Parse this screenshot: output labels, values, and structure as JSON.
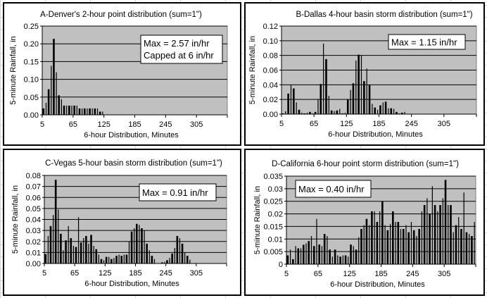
{
  "chart_data": [
    {
      "id": "A",
      "type": "bar",
      "title": "A-Denver's 2-hour point distribution (sum=1\")",
      "xlabel": "6-hour Distribution, Minutes",
      "ylabel": "5-minute Rainfall, in",
      "xlim": [
        5,
        365
      ],
      "ylim": [
        0,
        0.25
      ],
      "y_ticks": [
        "0.00",
        "0.05",
        "0.10",
        "0.15",
        "0.20",
        "0.25"
      ],
      "y_tick_values": [
        0,
        0.05,
        0.1,
        0.15,
        0.2,
        0.25
      ],
      "x_ticks": [
        "5",
        "65",
        "125",
        "185",
        "245",
        "305"
      ],
      "x_tick_values": [
        5,
        65,
        125,
        185,
        245,
        305
      ],
      "grid": true,
      "annotation": [
        "Max = 2.57 in/hr",
        "Capped at 6 in/hr"
      ],
      "annotation_placement": "top-right",
      "interval_minutes": 5,
      "values": [
        0.018,
        0.034,
        0.072,
        0.138,
        0.214,
        0.12,
        0.055,
        0.044,
        0.026,
        0.026,
        0.026,
        0.026,
        0.026,
        0.026,
        0.018,
        0.018,
        0.018,
        0.018,
        0.018,
        0.018,
        0.018,
        0.018,
        0.009,
        0.009
      ]
    },
    {
      "id": "B",
      "type": "bar",
      "title": "B-Dallas 4-hour basin storm distribution (sum=1\")",
      "xlabel": "6-hour Distribution, Minutes",
      "ylabel": "5-minute Rainfall, in",
      "xlim": [
        5,
        365
      ],
      "ylim": [
        0,
        0.12
      ],
      "y_ticks": [
        "0.00",
        "0.02",
        "0.04",
        "0.06",
        "0.08",
        "0.10",
        "0.12"
      ],
      "y_tick_values": [
        0,
        0.02,
        0.04,
        0.06,
        0.08,
        0.1,
        0.12
      ],
      "x_ticks": [
        "5",
        "65",
        "125",
        "185",
        "245",
        "305"
      ],
      "x_tick_values": [
        5,
        65,
        125,
        185,
        245,
        305
      ],
      "grid": true,
      "annotation": [
        "Max = 1.15 in/hr"
      ],
      "annotation_placement": "top-right",
      "interval_minutes": 5,
      "values": [
        0.001,
        0.004,
        0.028,
        0.04,
        0.035,
        0.016,
        0.006,
        0.002,
        0.001,
        0.002,
        0.003,
        0.001,
        0.003,
        0.02,
        0.041,
        0.096,
        0.075,
        0.025,
        0.005,
        0.004,
        0.005,
        0.007,
        0.001,
        0.002,
        0.02,
        0.033,
        0.042,
        0.073,
        0.081,
        0.08,
        0.045,
        0.062,
        0.04,
        0.014,
        0.009,
        0.006,
        0.012,
        0.016,
        0.017,
        0.008,
        0.008,
        0.007,
        0.003,
        0.001,
        0.002,
        0.003
      ]
    },
    {
      "id": "C",
      "type": "bar",
      "title": "C-Vegas 5-hour basin storm distribution (sum=1\")",
      "xlabel": "6-hour Distribution, Minutes",
      "ylabel": "5-minute Rainfall, in",
      "xlim": [
        5,
        365
      ],
      "ylim": [
        0,
        0.08
      ],
      "y_ticks": [
        "0.00",
        "0.01",
        "0.02",
        "0.03",
        "0.04",
        "0.05",
        "0.06",
        "0.07",
        "0.08"
      ],
      "y_tick_values": [
        0,
        0.01,
        0.02,
        0.03,
        0.04,
        0.05,
        0.06,
        0.07,
        0.08
      ],
      "x_ticks": [
        "5",
        "65",
        "125",
        "185",
        "245",
        "305"
      ],
      "x_tick_values": [
        5,
        65,
        125,
        185,
        245,
        305
      ],
      "grid": true,
      "annotation": [
        "Max = 0.91 in/hr"
      ],
      "annotation_placement": "top-right",
      "interval_minutes": 5,
      "values": [
        0.0085,
        0.025,
        0.034,
        0.044,
        0.076,
        0.049,
        0.027,
        0.012,
        0.021,
        0.034,
        0.023,
        0.016,
        0.015,
        0.042,
        0.019,
        0.023,
        0.025,
        0.018,
        0.026,
        0.016,
        0.013,
        0.008,
        0.004,
        0.003,
        0.006,
        0.006,
        0.004,
        0.005,
        0.007,
        0.008,
        0.007,
        0.008,
        0.008,
        0.02,
        0.029,
        0.032,
        0.036,
        0.035,
        0.032,
        0.03,
        0.018,
        0.012,
        0.007,
        0.004,
        0,
        0,
        0.001,
        0.0015,
        0.003,
        0.005,
        0.009,
        0.014,
        0.025,
        0.023,
        0.018,
        0.01,
        0.007,
        0.0035
      ]
    },
    {
      "id": "D",
      "type": "bar",
      "title": "D-California 6-hour point storm distribution (sum=1\")",
      "xlabel": "6-hour Distribution, Minutes",
      "ylabel": "5-minute Rainfall, in",
      "xlim": [
        5,
        365
      ],
      "ylim": [
        0,
        0.035
      ],
      "y_ticks": [
        "0",
        "0.005",
        "0.01",
        "0.015",
        "0.02",
        "0.025",
        "0.03",
        "0.035"
      ],
      "y_tick_values": [
        0,
        0.005,
        0.01,
        0.015,
        0.02,
        0.025,
        0.03,
        0.035
      ],
      "x_ticks": [
        "5",
        "65",
        "125",
        "185",
        "245",
        "305"
      ],
      "x_tick_values": [
        5,
        65,
        125,
        185,
        245,
        305
      ],
      "grid": true,
      "annotation": [
        "Max = 0.40 in/hr"
      ],
      "annotation_placement": "top-left",
      "interval_minutes": 5,
      "values": [
        0.0035,
        0.0058,
        0.002,
        0.0072,
        0.0063,
        0.0063,
        0.0077,
        0.0083,
        0.0092,
        0.0112,
        0.0072,
        0.018,
        0.0078,
        0.0072,
        0.012,
        0.0112,
        0.0058,
        0.003,
        0.0058,
        0.0035,
        0.003,
        0.0035,
        0.0035,
        0.003,
        0.0078,
        0.0072,
        0.0058,
        0.0107,
        0.014,
        0.0155,
        0.018,
        0.0155,
        0.021,
        0.021,
        0.0168,
        0.021,
        0.025,
        0.0155,
        0.0135,
        0.016,
        0.021,
        0.0168,
        0.0168,
        0.014,
        0.014,
        0.0155,
        0.0127,
        0.0168,
        0.0135,
        0.0112,
        0.014,
        0.021,
        0.0235,
        0.0262,
        0.02,
        0.031,
        0.0235,
        0.021,
        0.0235,
        0.0262,
        0.0335,
        0.0235,
        0.0235,
        0.0127,
        0.0155,
        0.0187,
        0.014,
        0.0285,
        0.0127,
        0.012,
        0.0112,
        0.0168
      ]
    }
  ],
  "colors": {
    "plot_bg": "#c0c0c0",
    "bar": "#000000",
    "grid": "#000000",
    "panel_bg": "#ffffff"
  }
}
